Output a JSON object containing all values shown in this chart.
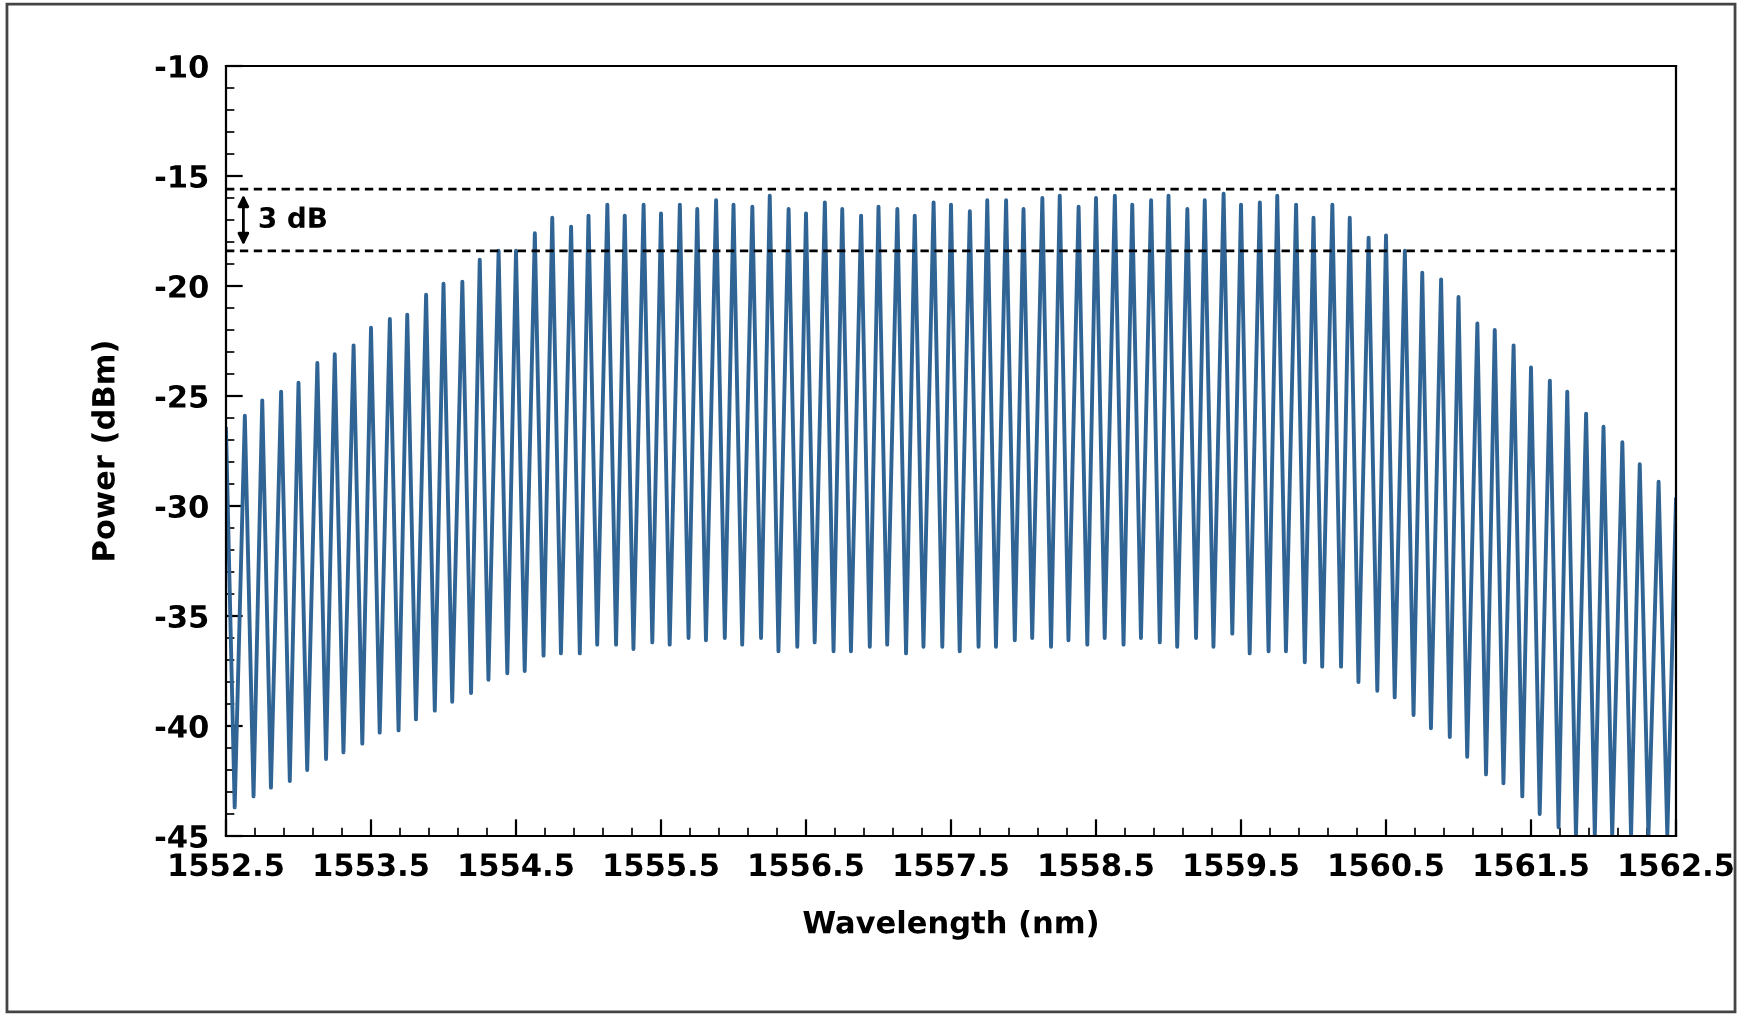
{
  "chart_data": {
    "type": "line",
    "xlabel": "Wavelength (nm)",
    "ylabel": "Power (dBm)",
    "xlim": [
      1552.5,
      1562.5
    ],
    "xticks": [
      1552.5,
      1553.5,
      1554.5,
      1555.5,
      1556.5,
      1557.5,
      1558.5,
      1559.5,
      1560.5,
      1561.5,
      1562.5
    ],
    "ylim": [
      -45,
      -10
    ],
    "yticks": [
      -45,
      -40,
      -35,
      -30,
      -25,
      -20,
      -15,
      -10
    ],
    "grid": false,
    "marker": "none",
    "line_style": "solid",
    "ref_lines": [
      {
        "axis": "y",
        "value": -15.6,
        "color": "#000000",
        "line_style": "dashed"
      },
      {
        "axis": "y",
        "value": -18.4,
        "color": "#000000",
        "line_style": "dashed"
      }
    ],
    "annotations": [
      "3 dB"
    ],
    "series": [
      {
        "color": "#2f6494",
        "x": [
          1552.5,
          1552.56,
          1552.63,
          1552.69,
          1552.75,
          1552.81,
          1552.88,
          1552.94,
          1553.0,
          1553.06,
          1553.13,
          1553.19,
          1553.25,
          1553.31,
          1553.38,
          1553.44,
          1553.5,
          1553.56,
          1553.63,
          1553.69,
          1553.75,
          1553.81,
          1553.88,
          1553.94,
          1554.0,
          1554.06,
          1554.13,
          1554.19,
          1554.25,
          1554.31,
          1554.38,
          1554.44,
          1554.5,
          1554.56,
          1554.63,
          1554.69,
          1554.75,
          1554.81,
          1554.88,
          1554.94,
          1555.0,
          1555.06,
          1555.13,
          1555.19,
          1555.25,
          1555.31,
          1555.38,
          1555.44,
          1555.5,
          1555.56,
          1555.63,
          1555.69,
          1555.75,
          1555.81,
          1555.88,
          1555.94,
          1556.0,
          1556.06,
          1556.13,
          1556.19,
          1556.25,
          1556.31,
          1556.38,
          1556.44,
          1556.5,
          1556.56,
          1556.63,
          1556.69,
          1556.75,
          1556.81,
          1556.88,
          1556.94,
          1557.0,
          1557.06,
          1557.13,
          1557.19,
          1557.25,
          1557.31,
          1557.38,
          1557.44,
          1557.5,
          1557.56,
          1557.63,
          1557.69,
          1557.75,
          1557.81,
          1557.88,
          1557.94,
          1558.0,
          1558.06,
          1558.13,
          1558.19,
          1558.25,
          1558.31,
          1558.38,
          1558.44,
          1558.5,
          1558.56,
          1558.63,
          1558.69,
          1558.75,
          1558.81,
          1558.88,
          1558.94,
          1559.0,
          1559.06,
          1559.13,
          1559.19,
          1559.25,
          1559.31,
          1559.38,
          1559.44,
          1559.5,
          1559.56,
          1559.63,
          1559.69,
          1559.75,
          1559.81,
          1559.88,
          1559.94,
          1560.0,
          1560.06,
          1560.13,
          1560.19,
          1560.25,
          1560.31,
          1560.38,
          1560.44,
          1560.5,
          1560.56,
          1560.63,
          1560.69,
          1560.75,
          1560.81,
          1560.88,
          1560.94,
          1561.0,
          1561.06,
          1561.13,
          1561.19,
          1561.25,
          1561.31,
          1561.38,
          1561.44,
          1561.5,
          1561.56,
          1561.63,
          1561.69,
          1561.75,
          1561.81,
          1561.88,
          1561.94,
          1562.0,
          1562.06,
          1562.13,
          1562.19,
          1562.25,
          1562.31,
          1562.38,
          1562.44,
          1562.5
        ],
        "values": [
          -26.5,
          -43.7,
          -25.9,
          -43.2,
          -25.2,
          -42.8,
          -24.8,
          -42.5,
          -24.4,
          -42.0,
          -23.5,
          -41.5,
          -23.1,
          -41.2,
          -22.7,
          -40.8,
          -21.9,
          -40.3,
          -21.5,
          -40.2,
          -21.3,
          -39.7,
          -20.4,
          -39.3,
          -19.9,
          -38.9,
          -19.8,
          -38.5,
          -18.8,
          -37.9,
          -18.4,
          -37.6,
          -18.4,
          -37.5,
          -17.6,
          -36.8,
          -16.9,
          -36.7,
          -17.3,
          -36.7,
          -16.8,
          -36.3,
          -16.3,
          -36.3,
          -16.8,
          -36.5,
          -16.3,
          -36.2,
          -16.7,
          -36.3,
          -16.3,
          -36.0,
          -16.5,
          -36.1,
          -16.1,
          -36.0,
          -16.3,
          -36.3,
          -16.4,
          -36.0,
          -15.9,
          -36.6,
          -16.5,
          -36.4,
          -16.7,
          -36.2,
          -16.2,
          -36.6,
          -16.5,
          -36.6,
          -16.8,
          -36.4,
          -16.4,
          -36.3,
          -16.5,
          -36.7,
          -16.8,
          -36.4,
          -16.2,
          -36.4,
          -16.3,
          -36.6,
          -16.6,
          -36.4,
          -16.1,
          -36.4,
          -16.1,
          -36.1,
          -16.5,
          -36.0,
          -16.0,
          -36.4,
          -15.9,
          -36.1,
          -16.4,
          -36.3,
          -16.0,
          -36.0,
          -15.9,
          -36.3,
          -16.3,
          -36.0,
          -16.1,
          -36.2,
          -15.9,
          -36.4,
          -16.5,
          -36.0,
          -16.1,
          -36.4,
          -15.8,
          -35.8,
          -16.3,
          -36.7,
          -16.2,
          -36.6,
          -15.9,
          -36.6,
          -16.3,
          -37.1,
          -16.9,
          -37.3,
          -16.3,
          -37.3,
          -16.9,
          -38.0,
          -17.8,
          -38.4,
          -17.7,
          -38.7,
          -18.4,
          -39.5,
          -19.4,
          -40.1,
          -19.7,
          -40.5,
          -20.5,
          -41.4,
          -21.7,
          -42.2,
          -22.0,
          -42.6,
          -22.7,
          -43.2,
          -23.7,
          -44.0,
          -24.3,
          -44.6,
          -24.8,
          -45,
          -25.8,
          -45,
          -26.4,
          -45,
          -27.1,
          -45,
          -28.1,
          -45,
          -28.9,
          -45,
          -29.7
        ]
      }
    ]
  }
}
